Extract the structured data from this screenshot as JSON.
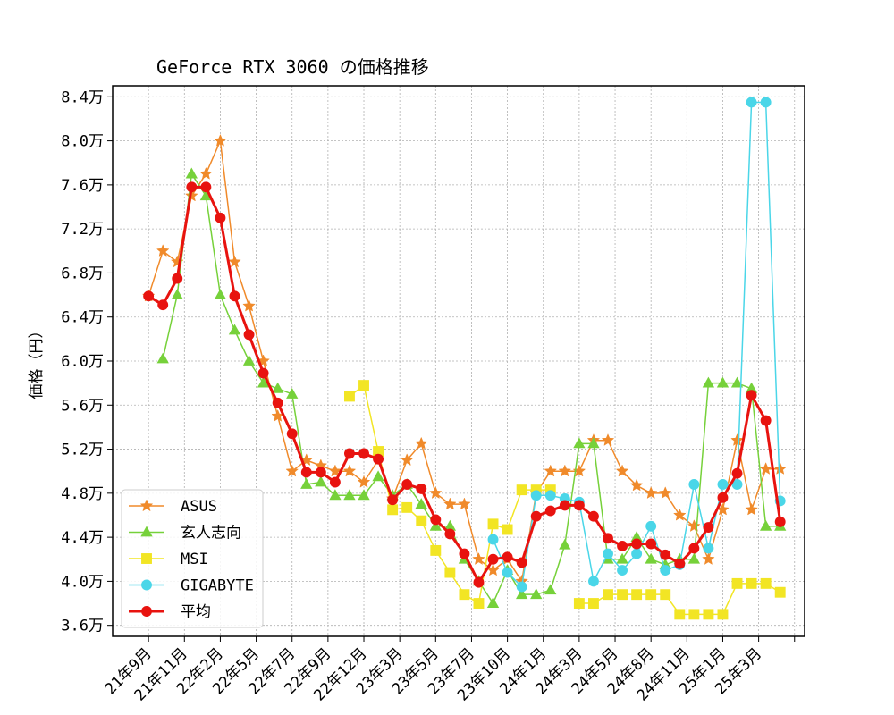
{
  "chart_data": {
    "type": "line",
    "title": "GeForce RTX 3060 の価格推移",
    "xlabel": "",
    "ylabel": "価格（円）",
    "ylim": [
      3.5,
      8.5
    ],
    "yticks": [
      3.6,
      4.0,
      4.4,
      4.8,
      5.2,
      5.6,
      6.0,
      6.4,
      6.8,
      7.2,
      7.6,
      8.0,
      8.4
    ],
    "ytick_labels": [
      "3.6万",
      "4.0万",
      "4.4万",
      "4.8万",
      "5.2万",
      "5.6万",
      "6.0万",
      "6.4万",
      "6.8万",
      "7.2万",
      "7.6万",
      "8.0万",
      "8.4万"
    ],
    "xlim": [
      -2.5,
      45.7
    ],
    "xticks": [
      0,
      2.5,
      5,
      7.5,
      10,
      12.5,
      15,
      17.5,
      20,
      22.5,
      25,
      27.5,
      30,
      32.5,
      35,
      37.5,
      40,
      42.5,
      45
    ],
    "xtick_labels": [
      "21年9月",
      "21年11月",
      "22年2月",
      "22年5月",
      "22年7月",
      "22年9月",
      "22年12月",
      "23年3月",
      "23年5月",
      "23年7月",
      "23年10月",
      "24年1月",
      "24年3月",
      "24年5月",
      "24年8月",
      "24年11月",
      "25年1月",
      "25年3月",
      ""
    ],
    "grid": true,
    "legend_position": "lower-left",
    "series": [
      {
        "name": "ASUS",
        "color": "#f08a2a",
        "marker": "star",
        "line_width": 1.5,
        "values": [
          6.59,
          7.0,
          6.9,
          7.5,
          7.7,
          8.0,
          6.9,
          6.5,
          6.0,
          5.5,
          5.0,
          5.1,
          5.05,
          5.0,
          5.0,
          4.9,
          5.1,
          4.75,
          5.1,
          5.25,
          4.8,
          4.7,
          4.7,
          4.2,
          4.1,
          4.2,
          4.0,
          4.8,
          5.0,
          5.0,
          5.0,
          5.28,
          5.28,
          5.0,
          4.87,
          4.8,
          4.8,
          4.6,
          4.5,
          4.2,
          4.65,
          5.28,
          4.65,
          5.02,
          5.02
        ]
      },
      {
        "name": "玄人志向",
        "color": "#76d13a",
        "marker": "triangle",
        "line_width": 1.5,
        "values": [
          null,
          6.02,
          6.6,
          7.7,
          7.5,
          6.6,
          6.28,
          6.0,
          5.8,
          5.75,
          5.7,
          4.88,
          4.9,
          4.78,
          4.78,
          4.78,
          4.95,
          4.78,
          4.88,
          4.7,
          4.5,
          4.5,
          4.2,
          4.0,
          3.8,
          4.1,
          3.88,
          3.88,
          3.92,
          4.33,
          5.25,
          5.25,
          4.2,
          4.2,
          4.4,
          4.2,
          4.15,
          4.2,
          4.2,
          5.8,
          5.8,
          5.8,
          5.75,
          4.5,
          4.5
        ]
      },
      {
        "name": "MSI",
        "color": "#f2e524",
        "marker": "square",
        "line_width": 1.5,
        "values": [
          null,
          null,
          null,
          null,
          null,
          null,
          null,
          null,
          null,
          null,
          null,
          null,
          null,
          null,
          5.68,
          5.78,
          5.18,
          4.65,
          4.67,
          4.55,
          4.28,
          4.08,
          3.88,
          3.8,
          4.52,
          4.47,
          4.83,
          4.83,
          4.83,
          null,
          3.8,
          3.8,
          3.88,
          3.88,
          3.88,
          3.88,
          3.88,
          3.7,
          3.7,
          3.7,
          3.7,
          3.98,
          3.98,
          3.98,
          3.9
        ]
      },
      {
        "name": "GIGABYTE",
        "color": "#4ad6e8",
        "marker": "circle",
        "line_width": 1.5,
        "values": [
          null,
          null,
          null,
          null,
          null,
          null,
          null,
          null,
          null,
          null,
          null,
          null,
          null,
          null,
          null,
          null,
          null,
          null,
          null,
          null,
          null,
          null,
          null,
          null,
          4.38,
          4.08,
          3.95,
          4.78,
          4.78,
          4.75,
          4.72,
          4.0,
          4.25,
          4.1,
          4.25,
          4.5,
          4.1,
          4.15,
          4.88,
          4.3,
          4.88,
          4.88,
          8.35,
          8.35,
          4.73
        ]
      },
      {
        "name": "平均",
        "color": "#e8130f",
        "marker": "circle",
        "line_width": 3,
        "values": [
          6.59,
          6.51,
          6.75,
          7.58,
          7.58,
          7.3,
          6.59,
          6.24,
          5.89,
          5.62,
          5.34,
          4.99,
          4.99,
          4.9,
          5.16,
          5.16,
          5.11,
          4.74,
          4.88,
          4.84,
          4.56,
          4.43,
          4.25,
          3.99,
          4.2,
          4.22,
          4.17,
          4.59,
          4.64,
          4.69,
          4.69,
          4.59,
          4.39,
          4.32,
          4.34,
          4.34,
          4.24,
          4.16,
          4.3,
          4.49,
          4.76,
          4.98,
          5.69,
          5.46,
          4.54
        ]
      }
    ]
  }
}
